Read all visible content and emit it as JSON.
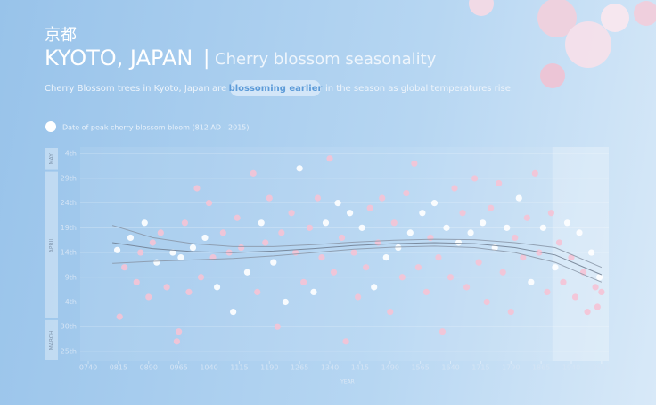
{
  "chart_data": {
    "type": "scatter",
    "title_native": "京都",
    "title": "KYOTO, JAPAN",
    "title_separator": "|",
    "subtitle": "Cherry blossom seasonality",
    "description_before": "Cherry Blossom trees in Kyoto, Japan are",
    "description_highlight": "blossoming earlier",
    "description_after": "in the season as global temperatures rise.",
    "legend_label": "Date of peak cherry-blossom bloom (812 AD - 2015)",
    "x_label": "YEAR",
    "xlim": [
      720,
      2033
    ],
    "xticks": [
      {
        "value": 740,
        "label": "0740"
      },
      {
        "value": 815,
        "label": "0815"
      },
      {
        "value": 890,
        "label": "0890"
      },
      {
        "value": 965,
        "label": "0965"
      },
      1040,
      1115,
      1190,
      1265,
      1340,
      1415,
      1490,
      1565,
      1640,
      1715,
      1790,
      1865,
      1940,
      2015
    ],
    "ylim": [
      82,
      125.3
    ],
    "yticks": [
      {
        "value": 84,
        "label": "25th"
      },
      {
        "value": 89,
        "label": "30th"
      },
      {
        "value": 94,
        "label": "4th"
      },
      {
        "value": 99,
        "label": "9th"
      },
      {
        "value": 104,
        "label": "14th"
      },
      {
        "value": 109,
        "label": "19th"
      },
      {
        "value": 114,
        "label": "24th"
      },
      {
        "value": 119,
        "label": "29th"
      },
      {
        "value": 124,
        "label": "4th"
      }
    ],
    "month_bands": [
      {
        "label": "MARCH",
        "range": [
          82,
          90.5
        ]
      },
      {
        "label": "APRIL",
        "range": [
          90.5,
          120.5
        ]
      },
      {
        "label": "MAY",
        "range": [
          120.5,
          125.3
        ]
      }
    ],
    "highlight_xrange": [
      1893,
      2033
    ],
    "grid": true,
    "series": [
      {
        "color": "#f5c3d5",
        "alt_color": "#ffffff",
        "x": [
          812,
          818,
          830,
          845,
          860,
          870,
          880,
          890,
          900,
          910,
          920,
          935,
          950,
          960,
          965,
          970,
          980,
          990,
          1000,
          1010,
          1020,
          1030,
          1040,
          1050,
          1060,
          1075,
          1090,
          1100,
          1110,
          1120,
          1135,
          1150,
          1160,
          1170,
          1180,
          1190,
          1200,
          1210,
          1220,
          1230,
          1245,
          1255,
          1265,
          1275,
          1290,
          1300,
          1310,
          1320,
          1330,
          1340,
          1350,
          1360,
          1370,
          1380,
          1390,
          1400,
          1410,
          1420,
          1430,
          1440,
          1450,
          1460,
          1470,
          1480,
          1490,
          1500,
          1510,
          1520,
          1530,
          1540,
          1550,
          1560,
          1570,
          1580,
          1590,
          1600,
          1610,
          1620,
          1630,
          1640,
          1650,
          1660,
          1670,
          1680,
          1690,
          1700,
          1710,
          1720,
          1730,
          1740,
          1750,
          1760,
          1770,
          1780,
          1790,
          1800,
          1810,
          1820,
          1830,
          1840,
          1850,
          1860,
          1870,
          1880,
          1890,
          1900,
          1910,
          1920,
          1930,
          1940,
          1950,
          1960,
          1970,
          1980,
          1990,
          2000,
          2005,
          2010,
          2015
        ],
        "values": [
          104.5,
          91,
          101,
          107,
          98,
          104,
          110,
          95,
          106,
          102,
          108,
          97,
          104,
          86,
          88,
          103,
          110,
          96,
          105,
          117,
          99,
          107,
          114,
          103,
          97,
          108,
          104,
          92,
          111,
          105,
          100,
          120,
          96,
          110,
          106,
          115,
          102,
          89,
          108,
          94,
          112,
          104,
          121,
          98,
          109,
          96,
          115,
          103,
          110,
          123,
          100,
          114,
          107,
          86,
          112,
          104,
          95,
          109,
          101,
          113,
          97,
          106,
          115,
          103,
          92,
          110,
          105,
          99,
          116,
          108,
          122,
          101,
          112,
          96,
          107,
          114,
          103,
          88,
          109,
          99,
          117,
          106,
          112,
          97,
          108,
          119,
          102,
          110,
          94,
          113,
          105,
          118,
          100,
          109,
          92,
          107,
          115,
          103,
          111,
          98,
          120,
          104,
          109,
          96,
          112,
          101,
          106,
          98,
          110,
          103,
          95,
          108,
          100,
          92,
          104,
          97,
          93,
          99,
          96
        ]
      }
    ],
    "trend_lines": [
      {
        "color": "#8a97a8",
        "x": [
          800,
          900,
          1000,
          1100,
          1200,
          1300,
          1400,
          1500,
          1600,
          1700,
          1800,
          1900,
          2015
        ],
        "values": [
          109.5,
          107,
          105.8,
          105.2,
          105.2,
          105.6,
          106.1,
          106.5,
          106.7,
          106.6,
          106,
          105,
          101
        ]
      },
      {
        "color": "#6f7d8f",
        "x": [
          800,
          900,
          1000,
          1100,
          1200,
          1300,
          1400,
          1500,
          1600,
          1700,
          1800,
          1900,
          2015
        ],
        "values": [
          106,
          104.8,
          104.2,
          104,
          104.3,
          104.8,
          105.4,
          105.8,
          106,
          105.8,
          105,
          103.5,
          99.5
        ]
      },
      {
        "color": "#8a97a8",
        "x": [
          800,
          900,
          1000,
          1100,
          1200,
          1300,
          1400,
          1500,
          1600,
          1700,
          1800,
          1900,
          2015
        ],
        "values": [
          101.8,
          102.2,
          102.5,
          102.8,
          103.3,
          104,
          104.7,
          105.1,
          105.3,
          105,
          104,
          102,
          98
        ]
      }
    ]
  }
}
